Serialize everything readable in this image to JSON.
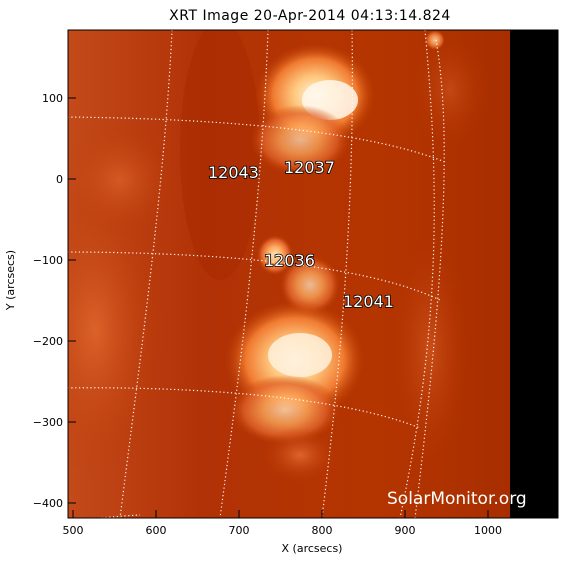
{
  "title": "XRT Image 20-Apr-2014 04:13:14.824",
  "xlabel": "X (arcsecs)",
  "ylabel": "Y (arcsecs)",
  "x_ticks": [
    "500",
    "600",
    "700",
    "800",
    "900",
    "1000"
  ],
  "y_ticks": [
    "100",
    "0",
    "−100",
    "−200",
    "−300",
    "−400"
  ],
  "regions": [
    {
      "id": "12043"
    },
    {
      "id": "12037"
    },
    {
      "id": "12036"
    },
    {
      "id": "12041"
    }
  ],
  "watermark": "SolarMonitor.org",
  "colors": {
    "disk": "#b63000",
    "bright": "#ffe0b0",
    "off_limb": "#000000",
    "grid": "#ffffff"
  }
}
